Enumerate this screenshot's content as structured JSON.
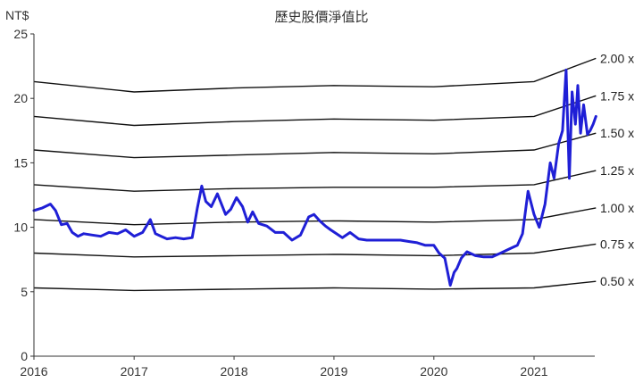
{
  "chart_data": {
    "type": "line",
    "title": "歷史股價淨值比",
    "ylabel": "NT$",
    "xlabel": "",
    "ylim": [
      0,
      25
    ],
    "xlim": [
      "2016-01-01",
      "2021-08-15"
    ],
    "y_ticks": [
      "0",
      "5",
      "10",
      "15",
      "20",
      "25"
    ],
    "x_ticks": [
      {
        "date": "2016-01-01",
        "label": "2016"
      },
      {
        "date": "2017-01-01",
        "label": "2017"
      },
      {
        "date": "2018-01-01",
        "label": "2018"
      },
      {
        "date": "2019-01-01",
        "label": "2019"
      },
      {
        "date": "2020-01-01",
        "label": "2020"
      },
      {
        "date": "2021-01-01",
        "label": "2021"
      }
    ],
    "grid": false,
    "colors": {
      "price": "#1f1fd6",
      "bands": "#111111"
    },
    "price_series": {
      "x": [
        "2016-01-01",
        "2016-02-01",
        "2016-03-01",
        "2016-03-20",
        "2016-04-10",
        "2016-05-01",
        "2016-05-20",
        "2016-06-10",
        "2016-07-01",
        "2016-08-01",
        "2016-09-01",
        "2016-10-01",
        "2016-11-01",
        "2016-12-01",
        "2017-01-01",
        "2017-02-01",
        "2017-03-01",
        "2017-03-20",
        "2017-04-10",
        "2017-05-01",
        "2017-06-01",
        "2017-07-01",
        "2017-08-01",
        "2017-08-20",
        "2017-09-05",
        "2017-09-20",
        "2017-10-10",
        "2017-11-01",
        "2017-12-01",
        "2017-12-20",
        "2018-01-10",
        "2018-02-01",
        "2018-02-20",
        "2018-03-10",
        "2018-04-01",
        "2018-05-01",
        "2018-06-01",
        "2018-07-01",
        "2018-08-01",
        "2018-09-01",
        "2018-10-01",
        "2018-10-20",
        "2018-11-10",
        "2018-12-01",
        "2018-12-20",
        "2019-01-10",
        "2019-02-01",
        "2019-03-01",
        "2019-04-01",
        "2019-05-01",
        "2019-06-01",
        "2019-07-01",
        "2019-08-01",
        "2019-09-01",
        "2019-10-01",
        "2019-11-01",
        "2019-12-01",
        "2020-01-01",
        "2020-01-20",
        "2020-02-10",
        "2020-03-01",
        "2020-03-15",
        "2020-03-25",
        "2020-04-10",
        "2020-05-01",
        "2020-06-01",
        "2020-07-01",
        "2020-08-01",
        "2020-09-01",
        "2020-10-01",
        "2020-11-01",
        "2020-11-20",
        "2020-12-10",
        "2021-01-01",
        "2021-01-20",
        "2021-02-10",
        "2021-03-01",
        "2021-03-15",
        "2021-04-01",
        "2021-04-15",
        "2021-04-28",
        "2021-05-10",
        "2021-05-20",
        "2021-06-01",
        "2021-06-10",
        "2021-06-20",
        "2021-07-01",
        "2021-07-15",
        "2021-07-25",
        "2021-08-05",
        "2021-08-15"
      ],
      "y": [
        11.3,
        11.5,
        11.8,
        11.3,
        10.2,
        10.3,
        9.6,
        9.3,
        9.5,
        9.4,
        9.3,
        9.6,
        9.5,
        9.8,
        9.3,
        9.6,
        10.6,
        9.5,
        9.3,
        9.1,
        9.2,
        9.1,
        9.2,
        11.5,
        13.2,
        12.0,
        11.6,
        12.6,
        11.0,
        11.4,
        12.3,
        11.6,
        10.4,
        11.2,
        10.3,
        10.1,
        9.6,
        9.6,
        9.0,
        9.4,
        10.8,
        11.0,
        10.5,
        10.1,
        9.8,
        9.5,
        9.2,
        9.6,
        9.1,
        9.0,
        9.0,
        9.0,
        9.0,
        9.0,
        8.9,
        8.8,
        8.6,
        8.6,
        8.0,
        7.6,
        5.5,
        6.5,
        6.8,
        7.6,
        8.1,
        7.8,
        7.7,
        7.7,
        8.0,
        8.3,
        8.6,
        9.5,
        12.8,
        11.0,
        10.0,
        11.8,
        15.0,
        13.8,
        16.5,
        17.5,
        22.2,
        13.8,
        20.5,
        18.0,
        21.0,
        17.3,
        19.5,
        17.2,
        17.5,
        18.0,
        18.6
      ]
    },
    "band_series": [
      {
        "name": "2.00 x",
        "values": [
          21.3,
          20.5,
          20.8,
          21.0,
          20.9,
          21.3,
          23.1
        ]
      },
      {
        "name": "1.75 x",
        "values": [
          18.6,
          17.9,
          18.2,
          18.4,
          18.3,
          18.6,
          20.2
        ]
      },
      {
        "name": "1.50 x",
        "values": [
          16.0,
          15.4,
          15.6,
          15.8,
          15.7,
          16.0,
          17.3
        ]
      },
      {
        "name": "1.25 x",
        "values": [
          13.3,
          12.8,
          13.0,
          13.1,
          13.1,
          13.3,
          14.4
        ]
      },
      {
        "name": "1.00 x",
        "values": [
          10.6,
          10.2,
          10.4,
          10.5,
          10.4,
          10.6,
          11.5
        ]
      },
      {
        "name": "0.75 x",
        "values": [
          8.0,
          7.7,
          7.8,
          7.9,
          7.8,
          8.0,
          8.7
        ]
      },
      {
        "name": "0.50 x",
        "values": [
          5.3,
          5.1,
          5.2,
          5.3,
          5.2,
          5.3,
          5.8
        ]
      }
    ],
    "band_x": [
      "2016-01-01",
      "2017-01-01",
      "2018-01-01",
      "2019-01-01",
      "2020-01-01",
      "2021-01-01",
      "2021-08-15"
    ]
  }
}
